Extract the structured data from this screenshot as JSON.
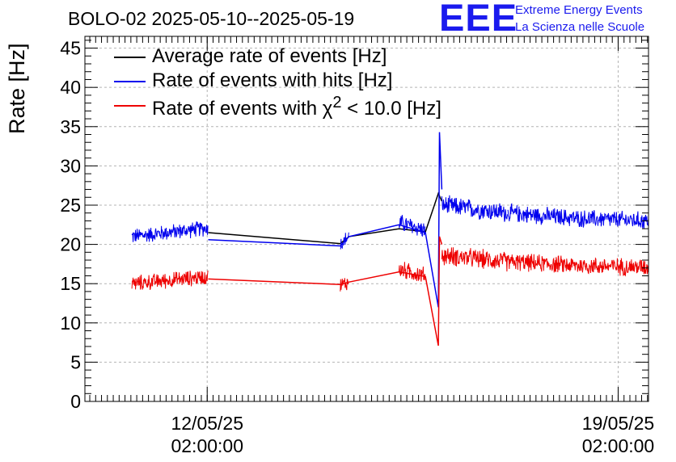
{
  "header": {
    "title": "BOLO-02 2025-05-10--2025-05-19",
    "logo_text": "EEE",
    "logo_line1": "Extreme Energy Events",
    "logo_line2": "La Scienza nelle Scuole"
  },
  "colors": {
    "average": "#000000",
    "hits": "#0000ee",
    "chi2": "#ee0000",
    "logo": "#1a1aee",
    "grid": "#b4b4b4"
  },
  "chart_data": {
    "type": "line",
    "title": "BOLO-02 2025-05-10--2025-05-19",
    "xlabel": "",
    "ylabel": "Rate [Hz]",
    "x_unit": "days since 2025-05-10 00:00",
    "xlim": [
      0.0,
      9.6
    ],
    "ylim": [
      0,
      46.5
    ],
    "yticks": [
      0,
      5,
      10,
      15,
      20,
      25,
      30,
      35,
      40,
      45
    ],
    "xticks": [
      {
        "x": 2.083,
        "date": "12/05/25",
        "time": "02:00:00"
      },
      {
        "x": 9.083,
        "date": "19/05/25",
        "time": "02:00:00"
      }
    ],
    "grid": true,
    "legend_position": "top-left",
    "segments": [
      {
        "x": [
          0.8,
          2.1
        ],
        "average": [
          21.4,
          22.2
        ],
        "hits": [
          21.0,
          22.1
        ],
        "chi2": [
          15.0,
          15.9
        ],
        "noise": 0.9
      },
      {
        "x": [
          4.35,
          4.5
        ],
        "average": [
          20.5,
          21.0
        ],
        "hits": [
          20.0,
          21.0
        ],
        "chi2": [
          14.8,
          15.2
        ],
        "noise": 0.9
      },
      {
        "x": [
          5.35,
          5.8
        ],
        "average": [
          22.0,
          21.7
        ],
        "hits": [
          22.8,
          21.8
        ],
        "chi2": [
          16.8,
          16.0
        ],
        "noise": 1.0
      },
      {
        "x": [
          6.08,
          7.2
        ],
        "average": [
          25.0,
          23.8
        ],
        "hits": [
          25.0,
          24.0
        ],
        "chi2": [
          18.6,
          17.8
        ],
        "noise": 1.1
      },
      {
        "x": [
          7.2,
          8.4
        ],
        "average": [
          23.8,
          23.2
        ],
        "hits": [
          24.0,
          23.3
        ],
        "chi2": [
          17.8,
          17.3
        ],
        "noise": 1.0
      },
      {
        "x": [
          8.4,
          9.6
        ],
        "average": [
          23.2,
          23.0
        ],
        "hits": [
          23.3,
          23.0
        ],
        "chi2": [
          17.3,
          17.1
        ],
        "noise": 1.0
      }
    ],
    "series": [
      {
        "name": "Average rate of events [Hz]",
        "key": "average",
        "points": [
          [
            2.1,
            21.5
          ],
          [
            4.35,
            20.1
          ],
          [
            4.5,
            21.0
          ],
          [
            5.35,
            22.0
          ],
          [
            5.8,
            21.6
          ],
          [
            6.02,
            26.5
          ],
          [
            6.08,
            25.5
          ]
        ]
      },
      {
        "name": "Rate of events with hits [Hz]",
        "key": "hits",
        "points": [
          [
            2.1,
            20.6
          ],
          [
            4.35,
            19.8
          ],
          [
            4.5,
            21.0
          ],
          [
            5.35,
            22.5
          ],
          [
            5.8,
            21.5
          ],
          [
            6.02,
            12.0
          ],
          [
            6.04,
            34.3
          ],
          [
            6.08,
            27.0
          ]
        ]
      },
      {
        "name": "Rate of events with χ² < 10.0 [Hz]",
        "key": "chi2",
        "points": [
          [
            2.1,
            15.6
          ],
          [
            4.35,
            14.9
          ],
          [
            4.5,
            15.2
          ],
          [
            5.35,
            16.5
          ],
          [
            5.8,
            15.9
          ],
          [
            6.02,
            7.1
          ],
          [
            6.04,
            21.0
          ],
          [
            6.08,
            20.0
          ]
        ]
      }
    ]
  },
  "legend": [
    {
      "label": "Average rate of events [Hz]",
      "color": "#000000"
    },
    {
      "label": "Rate of events with hits [Hz]",
      "color": "#0000ee"
    },
    {
      "label_html": "Rate of events with χ<sup>2</sup> < 10.0 [Hz]",
      "label": "Rate of events with χ2 < 10.0 [Hz]",
      "color": "#ee0000"
    }
  ]
}
